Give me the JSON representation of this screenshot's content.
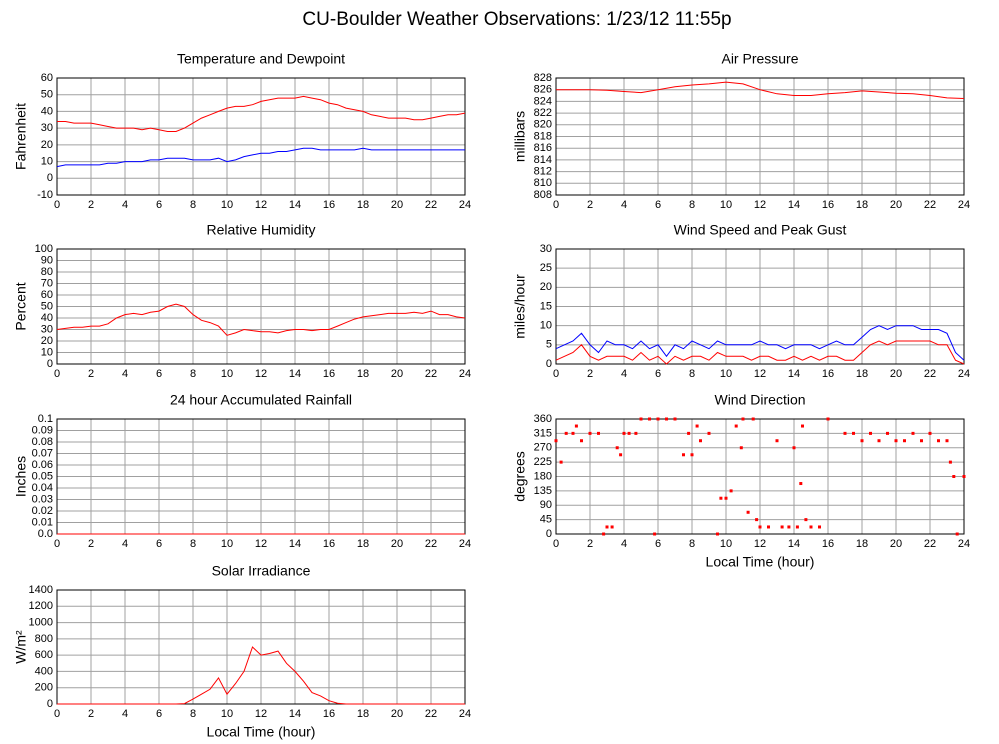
{
  "title": "CU-Boulder Weather Observations: 1/23/12 11:55p",
  "chart_data": [
    {
      "type": "line",
      "title": "Temperature and Dewpoint",
      "ylabel": "Fahrenheit",
      "x": [
        0,
        0.5,
        1,
        1.5,
        2,
        2.5,
        3,
        3.5,
        4,
        4.5,
        5,
        5.5,
        6,
        6.5,
        7,
        7.5,
        8,
        8.5,
        9,
        9.5,
        10,
        10.5,
        11,
        11.5,
        12,
        12.5,
        13,
        13.5,
        14,
        14.5,
        15,
        15.5,
        16,
        16.5,
        17,
        17.5,
        18,
        18.5,
        19,
        19.5,
        20,
        20.5,
        21,
        21.5,
        22,
        22.5,
        23,
        23.5,
        24
      ],
      "series": [
        {
          "color": "#ff0000",
          "values": [
            34,
            34,
            33,
            33,
            33,
            32,
            31,
            30,
            30,
            30,
            29,
            30,
            29,
            28,
            28,
            30,
            33,
            36,
            38,
            40,
            42,
            43,
            43,
            44,
            46,
            47,
            48,
            48,
            48,
            49,
            48,
            47,
            45,
            44,
            42,
            41,
            40,
            38,
            37,
            36,
            36,
            36,
            35,
            35,
            36,
            37,
            38,
            38,
            39
          ]
        },
        {
          "color": "#0000ff",
          "values": [
            7,
            8,
            8,
            8,
            8,
            8,
            9,
            9,
            10,
            10,
            10,
            11,
            11,
            12,
            12,
            12,
            11,
            11,
            11,
            12,
            10,
            11,
            13,
            14,
            15,
            15,
            16,
            16,
            17,
            18,
            18,
            17,
            17,
            17,
            17,
            17,
            18,
            17,
            17,
            17,
            17,
            17,
            17,
            17,
            17,
            17,
            17,
            17,
            17
          ]
        }
      ],
      "xlim": [
        0,
        24
      ],
      "xticks": [
        0,
        2,
        4,
        6,
        8,
        10,
        12,
        14,
        16,
        18,
        20,
        22,
        24
      ],
      "ylim": [
        -10,
        60
      ],
      "yticks": [
        -10,
        0,
        10,
        20,
        30,
        40,
        50,
        60
      ],
      "grid": true
    },
    {
      "type": "line",
      "title": "Air Pressure",
      "ylabel": "millibars",
      "x": [
        0,
        1,
        2,
        3,
        4,
        5,
        6,
        7,
        8,
        9,
        10,
        11,
        12,
        13,
        14,
        15,
        16,
        17,
        18,
        19,
        20,
        21,
        22,
        23,
        24
      ],
      "series": [
        {
          "color": "#ff0000",
          "values": [
            826,
            826,
            826,
            825.9,
            825.7,
            825.5,
            826,
            826.5,
            826.8,
            827,
            827.3,
            827,
            826,
            825.3,
            825,
            825,
            825.3,
            825.5,
            825.8,
            825.6,
            825.4,
            825.3,
            825,
            824.6,
            824.5
          ]
        }
      ],
      "xlim": [
        0,
        24
      ],
      "xticks": [
        0,
        2,
        4,
        6,
        8,
        10,
        12,
        14,
        16,
        18,
        20,
        22,
        24
      ],
      "ylim": [
        808,
        828
      ],
      "yticks": [
        808,
        810,
        812,
        814,
        816,
        818,
        820,
        822,
        824,
        826,
        828
      ],
      "grid": true
    },
    {
      "type": "line",
      "title": "Relative Humidity",
      "ylabel": "Percent",
      "x": [
        0,
        0.5,
        1,
        1.5,
        2,
        2.5,
        3,
        3.5,
        4,
        4.5,
        5,
        5.5,
        6,
        6.5,
        7,
        7.5,
        8,
        8.5,
        9,
        9.5,
        10,
        10.5,
        11,
        11.5,
        12,
        12.5,
        13,
        13.5,
        14,
        14.5,
        15,
        15.5,
        16,
        16.5,
        17,
        17.5,
        18,
        18.5,
        19,
        19.5,
        20,
        20.5,
        21,
        21.5,
        22,
        22.5,
        23,
        23.5,
        24
      ],
      "series": [
        {
          "color": "#ff0000",
          "values": [
            30,
            31,
            32,
            32,
            33,
            33,
            35,
            40,
            43,
            44,
            43,
            45,
            46,
            50,
            52,
            50,
            43,
            38,
            36,
            33,
            25,
            27,
            30,
            29,
            28,
            28,
            27,
            29,
            30,
            30,
            29,
            30,
            30,
            33,
            36,
            39,
            41,
            42,
            43,
            44,
            44,
            44,
            45,
            44,
            46,
            43,
            43,
            41,
            40
          ]
        }
      ],
      "xlim": [
        0,
        24
      ],
      "xticks": [
        0,
        2,
        4,
        6,
        8,
        10,
        12,
        14,
        16,
        18,
        20,
        22,
        24
      ],
      "ylim": [
        0,
        100
      ],
      "yticks": [
        0,
        10,
        20,
        30,
        40,
        50,
        60,
        70,
        80,
        90,
        100
      ],
      "grid": true
    },
    {
      "type": "line",
      "title": "Wind Speed and Peak Gust",
      "ylabel": "miles/hour",
      "x": [
        0,
        0.5,
        1,
        1.5,
        2,
        2.5,
        3,
        3.5,
        4,
        4.5,
        5,
        5.5,
        6,
        6.5,
        7,
        7.5,
        8,
        8.5,
        9,
        9.5,
        10,
        10.5,
        11,
        11.5,
        12,
        12.5,
        13,
        13.5,
        14,
        14.5,
        15,
        15.5,
        16,
        16.5,
        17,
        17.5,
        18,
        18.5,
        19,
        19.5,
        20,
        20.5,
        21,
        21.5,
        22,
        22.5,
        23,
        23.5,
        24
      ],
      "series": [
        {
          "color": "#0000ff",
          "values": [
            4,
            5,
            6,
            8,
            5,
            3,
            6,
            5,
            5,
            4,
            6,
            4,
            5,
            2,
            5,
            4,
            6,
            5,
            4,
            6,
            5,
            5,
            5,
            5,
            6,
            5,
            5,
            4,
            5,
            5,
            5,
            4,
            5,
            6,
            5,
            5,
            7,
            9,
            10,
            9,
            10,
            10,
            10,
            9,
            9,
            9,
            8,
            3,
            1
          ]
        },
        {
          "color": "#ff0000",
          "values": [
            1,
            2,
            3,
            5,
            2,
            1,
            2,
            2,
            2,
            1,
            3,
            1,
            2,
            0,
            2,
            1,
            2,
            2,
            1,
            3,
            2,
            2,
            2,
            1,
            2,
            2,
            1,
            1,
            2,
            1,
            2,
            1,
            2,
            2,
            1,
            1,
            3,
            5,
            6,
            5,
            6,
            6,
            6,
            6,
            6,
            5,
            5,
            1,
            0
          ]
        }
      ],
      "xlim": [
        0,
        24
      ],
      "xticks": [
        0,
        2,
        4,
        6,
        8,
        10,
        12,
        14,
        16,
        18,
        20,
        22,
        24
      ],
      "ylim": [
        0,
        30
      ],
      "yticks": [
        0,
        5,
        10,
        15,
        20,
        25,
        30
      ],
      "grid": true
    },
    {
      "type": "line",
      "title": "24 hour Accumulated Rainfall",
      "ylabel": "Inches",
      "x": [
        0,
        1,
        2,
        3,
        4,
        5,
        6,
        7,
        8,
        9,
        10,
        11,
        12,
        13,
        14,
        15,
        16,
        17,
        18,
        19,
        20,
        21,
        22,
        23,
        24
      ],
      "series": [
        {
          "color": "#ff0000",
          "values": [
            0,
            0,
            0,
            0,
            0,
            0,
            0,
            0,
            0,
            0,
            0,
            0,
            0,
            0,
            0,
            0,
            0,
            0,
            0,
            0,
            0,
            0,
            0,
            0,
            0
          ]
        }
      ],
      "xlim": [
        0,
        24
      ],
      "xticks": [
        0,
        2,
        4,
        6,
        8,
        10,
        12,
        14,
        16,
        18,
        20,
        22,
        24
      ],
      "ylim": [
        0,
        0.1
      ],
      "yticks": [
        {
          "value": 0,
          "label": "0.0"
        },
        0.01,
        0.02,
        0.03,
        0.04,
        0.05,
        0.06,
        0.07,
        0.08,
        0.09,
        0.1
      ],
      "grid": true
    },
    {
      "type": "scatter",
      "title": "Wind Direction",
      "ylabel": "degrees",
      "xlabel": "Local Time (hour)",
      "x": [
        0,
        0.3,
        0.6,
        1,
        1.2,
        1.5,
        2,
        2.5,
        2.8,
        3,
        3.3,
        3.6,
        3.8,
        4,
        4.3,
        4.7,
        5,
        5.5,
        5.8,
        6,
        6.5,
        7,
        7.5,
        7.8,
        8,
        8.3,
        8.5,
        9,
        9.5,
        9.7,
        10,
        10.3,
        10.6,
        10.9,
        11,
        11.3,
        11.6,
        11.8,
        12,
        12.5,
        13,
        13.3,
        13.7,
        14,
        14.2,
        14.4,
        14.5,
        14.7,
        15,
        15.5,
        16,
        17,
        17.5,
        18,
        18.5,
        19,
        19.5,
        20,
        20.5,
        21,
        21.5,
        22,
        22.5,
        23,
        23.2,
        23.4,
        23.6,
        24
      ],
      "series": [
        {
          "color": "#ff0000",
          "values": [
            292,
            225,
            315,
            315,
            338,
            292,
            315,
            315,
            0,
            22,
            22,
            270,
            248,
            315,
            315,
            315,
            360,
            360,
            0,
            360,
            360,
            360,
            248,
            315,
            248,
            338,
            292,
            315,
            0,
            112,
            112,
            135,
            338,
            270,
            360,
            68,
            360,
            45,
            22,
            22,
            292,
            22,
            22,
            270,
            22,
            158,
            338,
            45,
            22,
            22,
            360,
            315,
            315,
            292,
            315,
            292,
            315,
            292,
            292,
            315,
            292,
            315,
            292,
            292,
            225,
            180,
            0,
            180
          ]
        }
      ],
      "xlim": [
        0,
        24
      ],
      "xticks": [
        0,
        2,
        4,
        6,
        8,
        10,
        12,
        14,
        16,
        18,
        20,
        22,
        24
      ],
      "ylim": [
        0,
        360
      ],
      "yticks": [
        0,
        45,
        90,
        135,
        180,
        225,
        270,
        315,
        360
      ],
      "grid": true
    },
    {
      "type": "line",
      "title": "Solar Irradiance",
      "ylabel": "W/m²",
      "xlabel": "Local Time (hour)",
      "x": [
        0,
        0.5,
        1,
        1.5,
        2,
        2.5,
        3,
        3.5,
        4,
        4.5,
        5,
        5.5,
        6,
        6.5,
        7,
        7.5,
        8,
        8.5,
        9,
        9.5,
        10,
        10.5,
        11,
        11.5,
        12,
        12.5,
        13,
        13.5,
        14,
        14.5,
        15,
        15.5,
        16,
        16.5,
        17,
        17.5,
        18,
        18.5,
        19,
        19.5,
        20,
        20.5,
        21,
        21.5,
        22,
        22.5,
        23,
        23.5,
        24
      ],
      "series": [
        {
          "color": "#ff0000",
          "values": [
            0,
            0,
            0,
            0,
            0,
            0,
            0,
            0,
            0,
            0,
            0,
            0,
            0,
            0,
            0,
            5,
            60,
            120,
            180,
            320,
            120,
            250,
            400,
            700,
            600,
            620,
            650,
            500,
            400,
            280,
            140,
            100,
            40,
            10,
            0,
            0,
            0,
            0,
            0,
            0,
            0,
            0,
            0,
            0,
            0,
            0,
            0,
            0,
            0
          ]
        }
      ],
      "xlim": [
        0,
        24
      ],
      "xticks": [
        0,
        2,
        4,
        6,
        8,
        10,
        12,
        14,
        16,
        18,
        20,
        22,
        24
      ],
      "ylim": [
        0,
        1400
      ],
      "yticks": [
        0,
        200,
        400,
        600,
        800,
        1000,
        1200,
        1400
      ],
      "grid": true
    }
  ]
}
